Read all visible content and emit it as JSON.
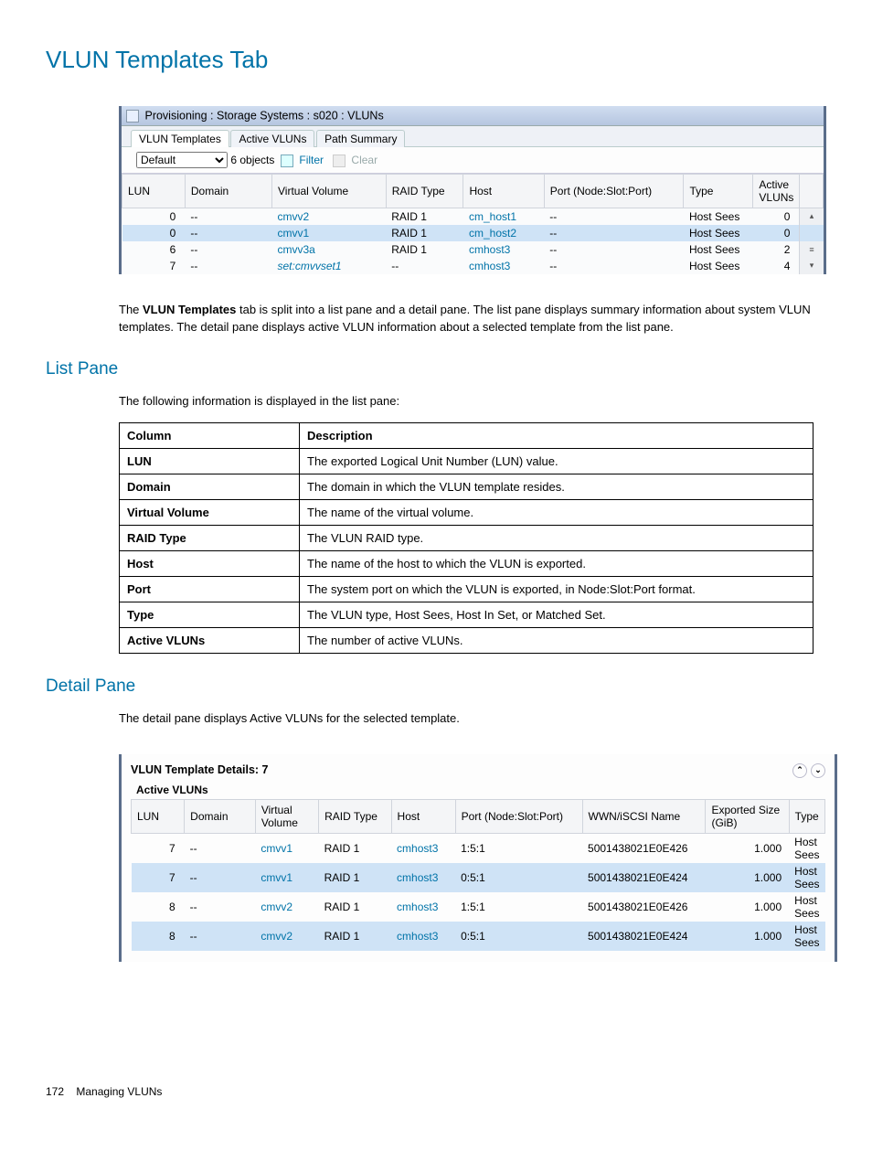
{
  "page": {
    "title": "VLUN Templates Tab",
    "intro": "The VLUN Templates tab is split into a list pane and a detail pane. The list pane displays summary information about system VLUN templates. The detail pane displays active VLUN information about a selected template from the list pane.",
    "list_pane_heading": "List Pane",
    "list_pane_intro": "The following information is displayed in the list pane:",
    "detail_pane_heading": "Detail Pane",
    "detail_pane_intro": "The detail pane displays Active VLUNs for the selected template.",
    "footer_page": "172",
    "footer_text": "Managing VLUNs"
  },
  "screenshot1": {
    "titlebar_text": "Provisioning : Storage Systems : s020 : VLUNs",
    "tabs": [
      "VLUN Templates",
      "Active VLUNs",
      "Path Summary"
    ],
    "toolbar": {
      "selected": "Default",
      "count": "6 objects",
      "filter_label": "Filter",
      "clear_label": "Clear"
    },
    "columns": [
      "LUN",
      "Domain",
      "Virtual Volume",
      "RAID Type",
      "Host",
      "Port (Node:Slot:Port)",
      "Type",
      "Active VLUNs"
    ],
    "rows": [
      {
        "lun": "0",
        "domain": "--",
        "vv": "cmvv2",
        "raid": "RAID 1",
        "host": "cm_host1",
        "port": "--",
        "type": "Host Sees",
        "av": "0"
      },
      {
        "lun": "0",
        "domain": "--",
        "vv": "cmvv1",
        "raid": "RAID 1",
        "host": "cm_host2",
        "port": "--",
        "type": "Host Sees",
        "av": "0",
        "selected": true
      },
      {
        "lun": "6",
        "domain": "--",
        "vv": "cmvv3a",
        "raid": "RAID 1",
        "host": "cmhost3",
        "port": "--",
        "type": "Host Sees",
        "av": "2"
      },
      {
        "lun": "7",
        "domain": "--",
        "vv": "set:cmvvset1",
        "raid": "--",
        "host": "cmhost3",
        "port": "--",
        "type": "Host Sees",
        "av": "4",
        "italic": true
      }
    ]
  },
  "desc_table": {
    "headers": [
      "Column",
      "Description"
    ],
    "rows": [
      [
        "LUN",
        "The exported Logical Unit Number (LUN) value."
      ],
      [
        "Domain",
        "The domain in which the VLUN template resides."
      ],
      [
        "Virtual Volume",
        "The name of the virtual volume."
      ],
      [
        "RAID Type",
        "The VLUN RAID type."
      ],
      [
        "Host",
        "The name of the host to which the VLUN is exported."
      ],
      [
        "Port",
        "The system port on which the VLUN is exported, in Node:Slot:Port format."
      ],
      [
        "Type",
        "The VLUN type, Host Sees, Host In Set, or Matched Set."
      ],
      [
        "Active VLUNs",
        "The number of active VLUNs."
      ]
    ]
  },
  "screenshot2": {
    "title": "VLUN Template Details: 7",
    "subhead": "Active VLUNs",
    "columns": [
      "LUN",
      "Domain",
      "Virtual Volume",
      "RAID Type",
      "Host",
      "Port (Node:Slot:Port)",
      "WWN/iSCSI Name",
      "Exported Size (GiB)",
      "Type"
    ],
    "rows": [
      {
        "lun": "7",
        "domain": "--",
        "vv": "cmvv1",
        "raid": "RAID 1",
        "host": "cmhost3",
        "port": "1:5:1",
        "wwn": "5001438021E0E426",
        "size": "1.000",
        "type": "Host Sees"
      },
      {
        "lun": "7",
        "domain": "--",
        "vv": "cmvv1",
        "raid": "RAID 1",
        "host": "cmhost3",
        "port": "0:5:1",
        "wwn": "5001438021E0E424",
        "size": "1.000",
        "type": "Host Sees",
        "selected": true
      },
      {
        "lun": "8",
        "domain": "--",
        "vv": "cmvv2",
        "raid": "RAID 1",
        "host": "cmhost3",
        "port": "1:5:1",
        "wwn": "5001438021E0E426",
        "size": "1.000",
        "type": "Host Sees"
      },
      {
        "lun": "8",
        "domain": "--",
        "vv": "cmvv2",
        "raid": "RAID 1",
        "host": "cmhost3",
        "port": "0:5:1",
        "wwn": "5001438021E0E424",
        "size": "1.000",
        "type": "Host Sees",
        "selected": true
      }
    ]
  }
}
